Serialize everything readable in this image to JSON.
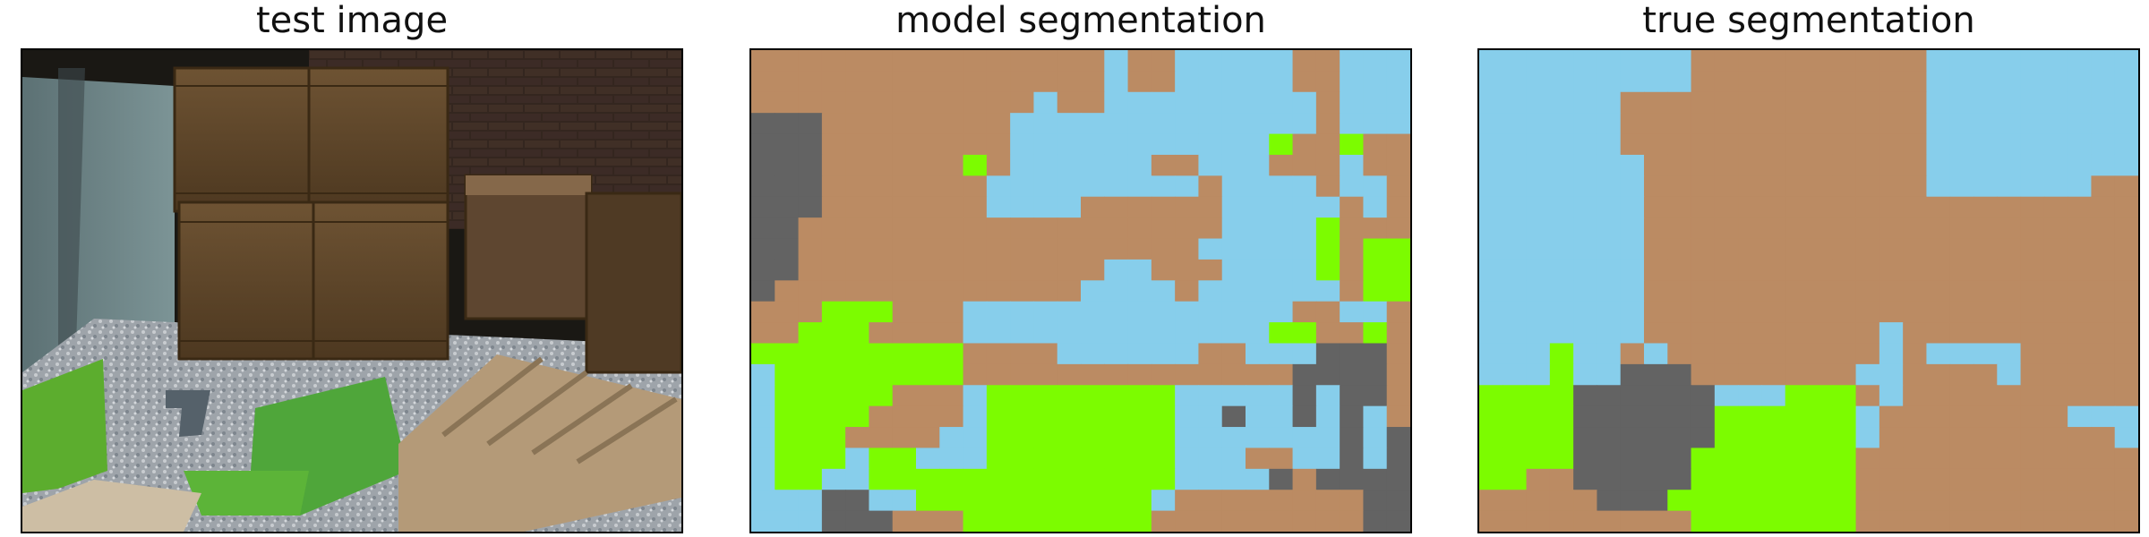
{
  "panels": [
    {
      "title": "test image"
    },
    {
      "title": "model segmentation"
    },
    {
      "title": "true segmentation"
    }
  ],
  "colors": {
    "brown": "#bb8b63",
    "sky": "#87ceeb",
    "gray": "#636363",
    "green": "#7cfc00"
  },
  "segmentations": {
    "model": [
      "BBBBBBBBBBBBBBBSBBSSSSSBBSSS",
      "BBBBBBBBBBBBBBBSBBSSSSSBBSSS",
      "BBBBBBBBBBBBSBBSSSSSSSSSBSSS",
      "DDDBBBBBBBBSSSSSSSSSSSSSBSSS",
      "DDDBBBBBBBBSSSSSSSSSSSGBBGBB",
      "DDDBBBBBBGBSSSSSSBBSSSBBBSBB",
      "DDDBBBBBBBSSSSSSSSSBSSSSBSSB",
      "DDDBBBBBBBSSSSBBBBBBSSSSSBSB",
      "DDBBBBBBBBBBBBBBBBBBSSSSGBBB",
      "DDBBBBBBBBBBBBBBBBBSSSSSGBGG",
      "DDBBBBBBBBBBBBBSSBBBSSSSGBGG",
      "DBBBBBBBBBBBBBSSSSBSSSSSSBGG",
      "BBBGGGBBBSSSSSSSSSSSSSSBBSSB",
      "BBGGGBBBBSSSSSSSSSSSSSGGBBGB",
      "GGGGGGGGGBBBBSSSSSSBBSSSDDDB",
      "SGGGGGGGGBBBBBBBBBBBBBBDDDDB",
      "SGGGGGBBBSGGGGGGGGSSSSSDSDDB",
      "SGGGGBBBBSGGGGGGGGSSDSSDSDSB",
      "SGGGBBBBSSGGGGGGGGSSSSSSSDSD",
      "SGGGSGGSSSGGGGGGGGSSSBBSSDSD",
      "SGGSSGGGGGGGGGGGGGSSSSDBDDDD",
      "SSSDDSSGGGGGGGGGGSBBBBBBBBDD",
      "SSSDDDBBBGGGGGGGGBBBBBBBBBDD"
    ],
    "truth": [
      "SSSSSSSSSBBBBBBBBBBSSSSSSSSS",
      "SSSSSSSSSBBBBBBBBBBSSSSSSSSS",
      "SSSSSSBBBBBBBBBBBBBSSSSSSSSS",
      "SSSSSSBBBBBBBBBBBBBSSSSSSSSS",
      "SSSSSSBBBBBBBBBBBBBSSSSSSSSS",
      "SSSSSSSBBBBBBBBBBBBSSSSSSSSS",
      "SSSSSSSBBBBBBBBBBBBSSSSSSSBB",
      "SSSSSSSBBBBBBBBBBBBBBBBBBBBB",
      "SSSSSSSBBBBBBBBBBBBBBBBBBBBB",
      "SSSSSSSBBBBBBBBBBBBBBBBBBBBB",
      "SSSSSSSBBBBBBBBBBBBBBBBBBBBB",
      "SSSSSSSBBBBBBBBBBBBBBBBBBBBB",
      "SSSSSSSBBBBBBBBBBBBBBBBBBBBB",
      "SSSSSSSBBBBBBBBBBSBBBBBBBBBB",
      "SSSGSSBSBBBBBBBBBSBSSSSBBBBB",
      "SSSGSSDDDBBBBBBBSSBBBBSBBBBB",
      "GGGGDDDDDDSSSGGGBSBBBBBBBBBB",
      "GGGGDDDDDDGGGGGGSBBBBBBBBSSS",
      "GGGGDDDDDDGGGGGGSBBBBBBBBBBS",
      "GGGGDDDDDGGGGGGGBBBBBBBBBBBB",
      "GGBBDDDDDGGGGGGGBBBBBBBBBBBB",
      "BBBBBDDDGGGGGGGGBBBBBBBBBBBB",
      "BBBBBBBBBGGGGGGGBBBBBBBBBBBB"
    ]
  }
}
